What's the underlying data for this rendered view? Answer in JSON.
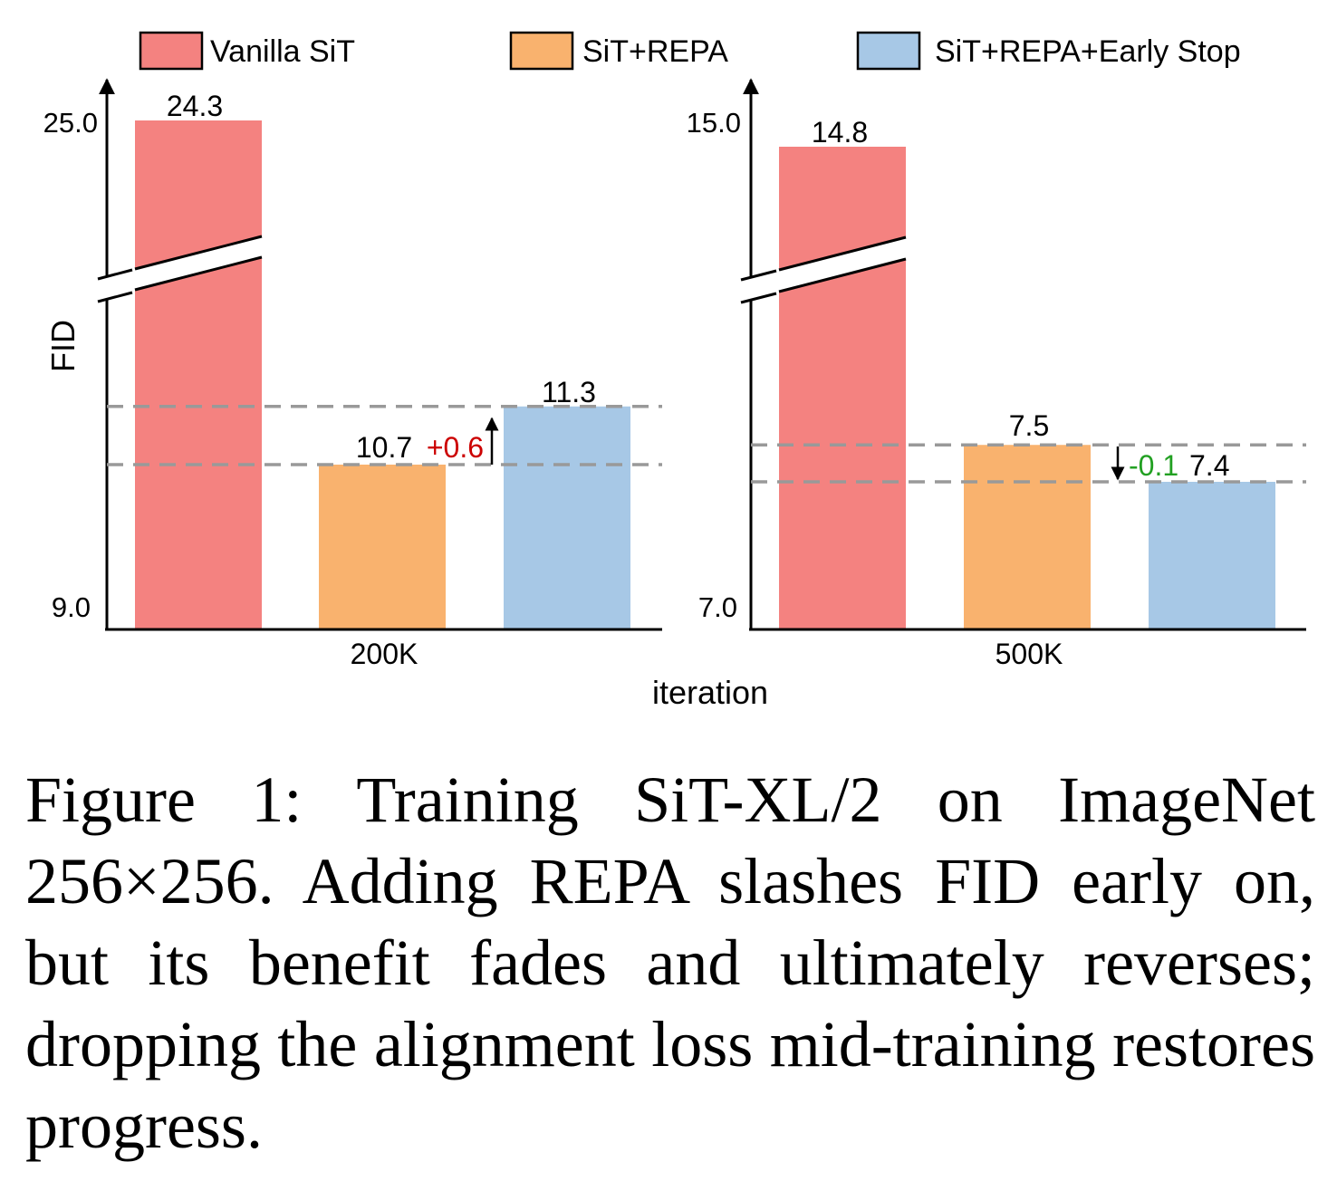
{
  "legend": [
    {
      "label": "Vanilla SiT",
      "color": "#f48280"
    },
    {
      "label": "SiT+REPA",
      "color": "#f9b26e"
    },
    {
      "label": "SiT+REPA+Early Stop",
      "color": "#a7c8e6"
    }
  ],
  "chart_data": {
    "type": "bar",
    "ylabel": "FID",
    "xlabel": "iteration",
    "broken_axis": true,
    "panels": [
      {
        "category": "200K",
        "ytick_low": "9.0",
        "ytick_high": "25.0",
        "series": [
          {
            "name": "Vanilla SiT",
            "value": 24.3,
            "label": "24.3"
          },
          {
            "name": "SiT+REPA",
            "value": 10.7,
            "label": "10.7"
          },
          {
            "name": "SiT+REPA+Early Stop",
            "value": 11.3,
            "label": "11.3"
          }
        ],
        "delta": {
          "text": "+0.6",
          "color": "#cc0000",
          "direction": "up"
        }
      },
      {
        "category": "500K",
        "ytick_low": "7.0",
        "ytick_high": "15.0",
        "series": [
          {
            "name": "Vanilla SiT",
            "value": 14.8,
            "label": "14.8"
          },
          {
            "name": "SiT+REPA",
            "value": 7.5,
            "label": "7.5"
          },
          {
            "name": "SiT+REPA+Early Stop",
            "value": 7.4,
            "label": "7.4"
          }
        ],
        "delta": {
          "text": "-0.1",
          "color": "#22a022",
          "direction": "down"
        }
      }
    ]
  },
  "caption": "Figure 1: Training SiT-XL/2 on ImageNet 256×256. Adding REPA slashes FID early on, but its benefit fades and ultimately reverses; dropping the alignment loss mid-training restores progress."
}
